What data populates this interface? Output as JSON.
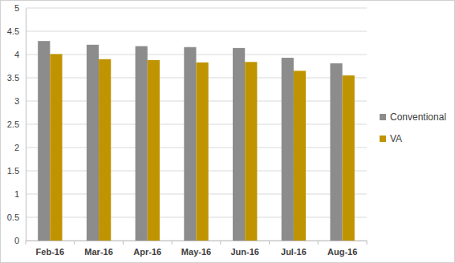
{
  "chart_data": {
    "type": "bar",
    "categories": [
      "Feb-16",
      "Mar-16",
      "Apr-16",
      "May-16",
      "Jun-16",
      "Jul-16",
      "Aug-16"
    ],
    "series": [
      {
        "name": "Conventional",
        "color": "#8c8c8c",
        "values": [
          4.29,
          4.21,
          4.18,
          4.16,
          4.14,
          3.93,
          3.81
        ]
      },
      {
        "name": "VA",
        "color": "#c09400",
        "values": [
          4.01,
          3.9,
          3.88,
          3.83,
          3.84,
          3.65,
          3.55
        ]
      }
    ],
    "ylim": [
      0,
      5
    ],
    "yticks": [
      0,
      0.5,
      1,
      1.5,
      2,
      2.5,
      3,
      3.5,
      4,
      4.5,
      5
    ],
    "grid": true,
    "legend": "right"
  }
}
